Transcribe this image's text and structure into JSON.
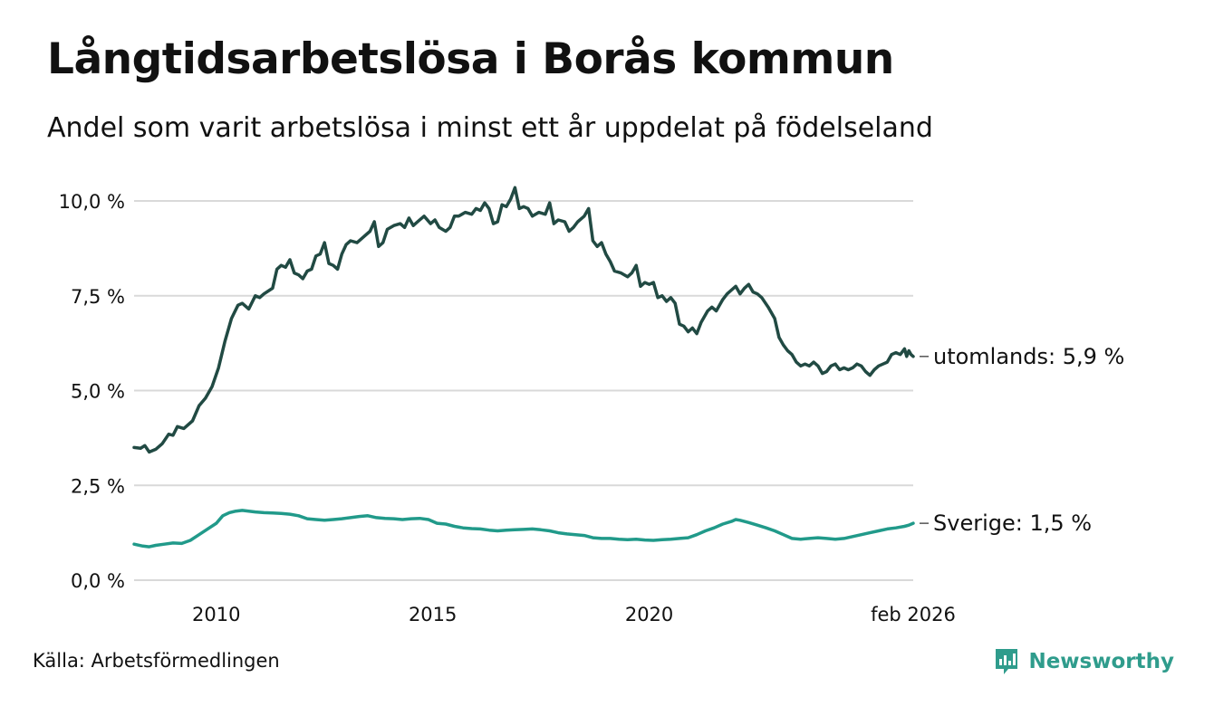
{
  "header": {
    "title": "Långtidsarbetslösa i Borås kommun",
    "subtitle": "Andel som varit arbetslösa i minst ett år uppdelat på födelseland"
  },
  "footer": {
    "source": "Källa: Arbetsförmedlingen",
    "brand": "Newsworthy",
    "brand_icon": "newsworthy-logo-icon"
  },
  "colors": {
    "utomlands": "#214a43",
    "sverige": "#219a8a",
    "grid": "#d9d9d9",
    "brand": "#2f9c8c"
  },
  "chart_data": {
    "type": "line",
    "title": "Långtidsarbetslösa i Borås kommun",
    "subtitle": "Andel som varit arbetslösa i minst ett år uppdelat på födelseland",
    "xlabel": "",
    "ylabel": "",
    "xlim": [
      2008.1,
      2026.1
    ],
    "ylim": [
      0,
      10.5
    ],
    "grid": true,
    "x_ticks": [
      {
        "value": 2010,
        "label": "2010"
      },
      {
        "value": 2015,
        "label": "2015"
      },
      {
        "value": 2020,
        "label": "2020"
      },
      {
        "value": 2026.1,
        "label": "feb 2026"
      }
    ],
    "y_ticks": [
      {
        "value": 0,
        "label": "0,0 %"
      },
      {
        "value": 2.5,
        "label": "2,5 %"
      },
      {
        "value": 5,
        "label": "5,0 %"
      },
      {
        "value": 7.5,
        "label": "7,5 %"
      },
      {
        "value": 10,
        "label": "10,0 %"
      }
    ],
    "series": [
      {
        "name": "utomlands",
        "end_label": "utomlands: 5,9 %",
        "last_value": 5.9,
        "points": [
          [
            2008.1,
            3.5
          ],
          [
            2008.25,
            3.48
          ],
          [
            2008.35,
            3.55
          ],
          [
            2008.45,
            3.38
          ],
          [
            2008.6,
            3.45
          ],
          [
            2008.75,
            3.6
          ],
          [
            2008.9,
            3.85
          ],
          [
            2009.0,
            3.82
          ],
          [
            2009.1,
            4.05
          ],
          [
            2009.25,
            4.0
          ],
          [
            2009.45,
            4.2
          ],
          [
            2009.6,
            4.6
          ],
          [
            2009.75,
            4.8
          ],
          [
            2009.9,
            5.1
          ],
          [
            2010.05,
            5.6
          ],
          [
            2010.2,
            6.3
          ],
          [
            2010.35,
            6.9
          ],
          [
            2010.5,
            7.25
          ],
          [
            2010.6,
            7.3
          ],
          [
            2010.75,
            7.15
          ],
          [
            2010.9,
            7.5
          ],
          [
            2011.0,
            7.45
          ],
          [
            2011.1,
            7.55
          ],
          [
            2011.3,
            7.7
          ],
          [
            2011.4,
            8.2
          ],
          [
            2011.5,
            8.3
          ],
          [
            2011.6,
            8.25
          ],
          [
            2011.7,
            8.45
          ],
          [
            2011.8,
            8.1
          ],
          [
            2011.9,
            8.05
          ],
          [
            2012.0,
            7.95
          ],
          [
            2012.1,
            8.15
          ],
          [
            2012.2,
            8.2
          ],
          [
            2012.3,
            8.55
          ],
          [
            2012.4,
            8.6
          ],
          [
            2012.5,
            8.9
          ],
          [
            2012.6,
            8.35
          ],
          [
            2012.7,
            8.3
          ],
          [
            2012.8,
            8.2
          ],
          [
            2012.9,
            8.6
          ],
          [
            2013.0,
            8.85
          ],
          [
            2013.1,
            8.95
          ],
          [
            2013.25,
            8.9
          ],
          [
            2013.4,
            9.05
          ],
          [
            2013.55,
            9.2
          ],
          [
            2013.65,
            9.45
          ],
          [
            2013.75,
            8.8
          ],
          [
            2013.85,
            8.9
          ],
          [
            2013.95,
            9.25
          ],
          [
            2014.1,
            9.35
          ],
          [
            2014.25,
            9.4
          ],
          [
            2014.35,
            9.3
          ],
          [
            2014.45,
            9.55
          ],
          [
            2014.55,
            9.35
          ],
          [
            2014.65,
            9.45
          ],
          [
            2014.8,
            9.6
          ],
          [
            2014.95,
            9.4
          ],
          [
            2015.05,
            9.5
          ],
          [
            2015.15,
            9.3
          ],
          [
            2015.3,
            9.2
          ],
          [
            2015.4,
            9.3
          ],
          [
            2015.5,
            9.6
          ],
          [
            2015.6,
            9.6
          ],
          [
            2015.75,
            9.7
          ],
          [
            2015.9,
            9.65
          ],
          [
            2016.0,
            9.8
          ],
          [
            2016.1,
            9.75
          ],
          [
            2016.2,
            9.95
          ],
          [
            2016.3,
            9.8
          ],
          [
            2016.4,
            9.4
          ],
          [
            2016.5,
            9.45
          ],
          [
            2016.6,
            9.9
          ],
          [
            2016.7,
            9.85
          ],
          [
            2016.8,
            10.05
          ],
          [
            2016.9,
            10.35
          ],
          [
            2017.0,
            9.8
          ],
          [
            2017.1,
            9.85
          ],
          [
            2017.2,
            9.8
          ],
          [
            2017.3,
            9.6
          ],
          [
            2017.45,
            9.7
          ],
          [
            2017.6,
            9.65
          ],
          [
            2017.7,
            9.95
          ],
          [
            2017.8,
            9.4
          ],
          [
            2017.9,
            9.5
          ],
          [
            2018.05,
            9.45
          ],
          [
            2018.15,
            9.2
          ],
          [
            2018.25,
            9.3
          ],
          [
            2018.35,
            9.45
          ],
          [
            2018.5,
            9.6
          ],
          [
            2018.6,
            9.8
          ],
          [
            2018.7,
            8.95
          ],
          [
            2018.8,
            8.8
          ],
          [
            2018.9,
            8.9
          ],
          [
            2019.0,
            8.6
          ],
          [
            2019.1,
            8.4
          ],
          [
            2019.2,
            8.15
          ],
          [
            2019.35,
            8.1
          ],
          [
            2019.5,
            8.0
          ],
          [
            2019.6,
            8.1
          ],
          [
            2019.7,
            8.3
          ],
          [
            2019.8,
            7.75
          ],
          [
            2019.9,
            7.85
          ],
          [
            2020.0,
            7.8
          ],
          [
            2020.1,
            7.85
          ],
          [
            2020.2,
            7.45
          ],
          [
            2020.3,
            7.5
          ],
          [
            2020.4,
            7.35
          ],
          [
            2020.5,
            7.45
          ],
          [
            2020.6,
            7.3
          ],
          [
            2020.7,
            6.75
          ],
          [
            2020.8,
            6.7
          ],
          [
            2020.9,
            6.55
          ],
          [
            2021.0,
            6.65
          ],
          [
            2021.1,
            6.5
          ],
          [
            2021.2,
            6.8
          ],
          [
            2021.35,
            7.1
          ],
          [
            2021.45,
            7.2
          ],
          [
            2021.55,
            7.1
          ],
          [
            2021.7,
            7.4
          ],
          [
            2021.8,
            7.55
          ],
          [
            2021.9,
            7.65
          ],
          [
            2022.0,
            7.75
          ],
          [
            2022.1,
            7.55
          ],
          [
            2022.2,
            7.7
          ],
          [
            2022.3,
            7.8
          ],
          [
            2022.4,
            7.6
          ],
          [
            2022.5,
            7.55
          ],
          [
            2022.6,
            7.45
          ],
          [
            2022.75,
            7.2
          ],
          [
            2022.9,
            6.9
          ],
          [
            2023.0,
            6.4
          ],
          [
            2023.1,
            6.2
          ],
          [
            2023.2,
            6.05
          ],
          [
            2023.3,
            5.95
          ],
          [
            2023.4,
            5.75
          ],
          [
            2023.5,
            5.65
          ],
          [
            2023.6,
            5.7
          ],
          [
            2023.7,
            5.65
          ],
          [
            2023.8,
            5.75
          ],
          [
            2023.9,
            5.65
          ],
          [
            2024.0,
            5.45
          ],
          [
            2024.1,
            5.5
          ],
          [
            2024.2,
            5.65
          ],
          [
            2024.3,
            5.7
          ],
          [
            2024.4,
            5.55
          ],
          [
            2024.5,
            5.6
          ],
          [
            2024.6,
            5.55
          ],
          [
            2024.7,
            5.6
          ],
          [
            2024.8,
            5.7
          ],
          [
            2024.9,
            5.65
          ],
          [
            2025.0,
            5.5
          ],
          [
            2025.1,
            5.4
          ],
          [
            2025.2,
            5.55
          ],
          [
            2025.3,
            5.65
          ],
          [
            2025.4,
            5.7
          ],
          [
            2025.5,
            5.75
          ],
          [
            2025.6,
            5.95
          ],
          [
            2025.7,
            6.0
          ],
          [
            2025.8,
            5.95
          ],
          [
            2025.9,
            6.1
          ],
          [
            2025.95,
            5.9
          ],
          [
            2026.0,
            6.05
          ],
          [
            2026.05,
            5.95
          ],
          [
            2026.1,
            5.9
          ]
        ]
      },
      {
        "name": "Sverige",
        "end_label": "Sverige: 1,5 %",
        "last_value": 1.5,
        "points": [
          [
            2008.1,
            0.95
          ],
          [
            2008.3,
            0.9
          ],
          [
            2008.45,
            0.88
          ],
          [
            2008.6,
            0.92
          ],
          [
            2008.8,
            0.95
          ],
          [
            2009.0,
            0.98
          ],
          [
            2009.2,
            0.97
          ],
          [
            2009.4,
            1.05
          ],
          [
            2009.6,
            1.2
          ],
          [
            2009.8,
            1.35
          ],
          [
            2010.0,
            1.5
          ],
          [
            2010.15,
            1.7
          ],
          [
            2010.3,
            1.78
          ],
          [
            2010.45,
            1.82
          ],
          [
            2010.6,
            1.84
          ],
          [
            2010.75,
            1.82
          ],
          [
            2010.9,
            1.8
          ],
          [
            2011.1,
            1.78
          ],
          [
            2011.3,
            1.77
          ],
          [
            2011.5,
            1.76
          ],
          [
            2011.7,
            1.74
          ],
          [
            2011.9,
            1.7
          ],
          [
            2012.1,
            1.62
          ],
          [
            2012.3,
            1.6
          ],
          [
            2012.5,
            1.58
          ],
          [
            2012.7,
            1.6
          ],
          [
            2012.9,
            1.62
          ],
          [
            2013.1,
            1.65
          ],
          [
            2013.3,
            1.68
          ],
          [
            2013.5,
            1.7
          ],
          [
            2013.7,
            1.65
          ],
          [
            2013.9,
            1.63
          ],
          [
            2014.1,
            1.62
          ],
          [
            2014.3,
            1.6
          ],
          [
            2014.5,
            1.62
          ],
          [
            2014.7,
            1.63
          ],
          [
            2014.9,
            1.6
          ],
          [
            2015.1,
            1.5
          ],
          [
            2015.3,
            1.48
          ],
          [
            2015.5,
            1.42
          ],
          [
            2015.7,
            1.38
          ],
          [
            2015.9,
            1.36
          ],
          [
            2016.1,
            1.35
          ],
          [
            2016.3,
            1.32
          ],
          [
            2016.5,
            1.3
          ],
          [
            2016.7,
            1.32
          ],
          [
            2016.9,
            1.33
          ],
          [
            2017.1,
            1.34
          ],
          [
            2017.3,
            1.35
          ],
          [
            2017.5,
            1.33
          ],
          [
            2017.7,
            1.3
          ],
          [
            2017.9,
            1.25
          ],
          [
            2018.1,
            1.22
          ],
          [
            2018.3,
            1.2
          ],
          [
            2018.5,
            1.18
          ],
          [
            2018.7,
            1.12
          ],
          [
            2018.9,
            1.1
          ],
          [
            2019.1,
            1.1
          ],
          [
            2019.3,
            1.08
          ],
          [
            2019.5,
            1.07
          ],
          [
            2019.7,
            1.08
          ],
          [
            2019.9,
            1.06
          ],
          [
            2020.1,
            1.05
          ],
          [
            2020.3,
            1.07
          ],
          [
            2020.5,
            1.08
          ],
          [
            2020.7,
            1.1
          ],
          [
            2020.9,
            1.12
          ],
          [
            2021.1,
            1.2
          ],
          [
            2021.3,
            1.3
          ],
          [
            2021.5,
            1.38
          ],
          [
            2021.7,
            1.48
          ],
          [
            2021.9,
            1.55
          ],
          [
            2022.0,
            1.6
          ],
          [
            2022.1,
            1.58
          ],
          [
            2022.3,
            1.52
          ],
          [
            2022.5,
            1.45
          ],
          [
            2022.7,
            1.38
          ],
          [
            2022.9,
            1.3
          ],
          [
            2023.1,
            1.2
          ],
          [
            2023.3,
            1.1
          ],
          [
            2023.5,
            1.08
          ],
          [
            2023.7,
            1.1
          ],
          [
            2023.9,
            1.12
          ],
          [
            2024.1,
            1.1
          ],
          [
            2024.3,
            1.08
          ],
          [
            2024.5,
            1.1
          ],
          [
            2024.7,
            1.15
          ],
          [
            2024.9,
            1.2
          ],
          [
            2025.1,
            1.25
          ],
          [
            2025.3,
            1.3
          ],
          [
            2025.5,
            1.35
          ],
          [
            2025.7,
            1.38
          ],
          [
            2025.9,
            1.42
          ],
          [
            2026.0,
            1.45
          ],
          [
            2026.1,
            1.5
          ]
        ]
      }
    ]
  }
}
